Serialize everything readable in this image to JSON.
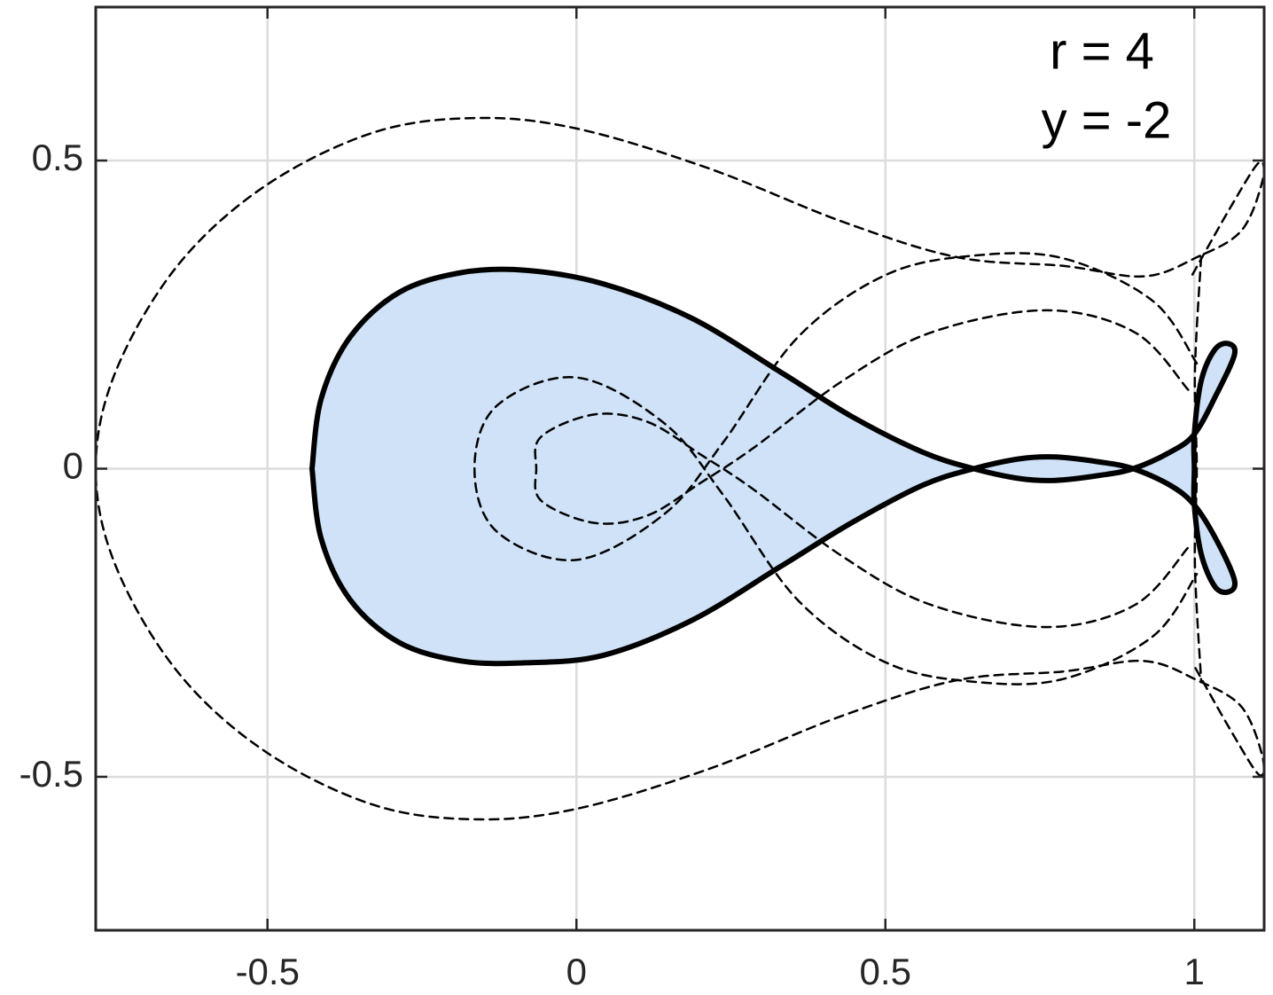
{
  "chart_data": {
    "type": "line",
    "annotations": [
      "r = 4",
      "y = -2"
    ],
    "xlim": [
      -0.778,
      1.113
    ],
    "ylim": [
      -0.749,
      0.749
    ],
    "xticks": [
      -0.5,
      0,
      0.5,
      1
    ],
    "yticks": [
      -0.5,
      0,
      0.5
    ],
    "grid": true,
    "series": [
      {
        "color": "#000000",
        "style": "solid",
        "fill": "#cfe2f7",
        "x": [
          -0.428,
          -0.413,
          -0.366,
          -0.287,
          -0.187,
          -0.083,
          0.043,
          0.187,
          0.33,
          0.445,
          0.56,
          0.643,
          0.717,
          0.775,
          0.846,
          0.901,
          0.961,
          1.0,
          1.036,
          1.065,
          1.055,
          1.033,
          1.011,
          1.0,
          1.0,
          1.0,
          1.011,
          1.033,
          1.055,
          1.065,
          1.036,
          1.0,
          0.961,
          0.901,
          0.846,
          0.775,
          0.717,
          0.643,
          0.56,
          0.445,
          0.33,
          0.187,
          0.043,
          -0.083,
          -0.187,
          -0.287,
          -0.366,
          -0.413,
          -0.428
        ],
        "y": [
          0,
          0.114,
          0.214,
          0.286,
          0.318,
          0.322,
          0.3,
          0.244,
          0.157,
          0.085,
          0.027,
          0,
          -0.016,
          -0.019,
          -0.011,
          0,
          0.027,
          0.056,
          0.121,
          0.185,
          0.203,
          0.193,
          0.142,
          0.056,
          0,
          -0.059,
          -0.138,
          -0.191,
          -0.2,
          -0.181,
          -0.116,
          -0.059,
          -0.027,
          0,
          0.011,
          0.019,
          0.016,
          0,
          -0.027,
          -0.088,
          -0.159,
          -0.246,
          -0.303,
          -0.315,
          -0.312,
          -0.282,
          -0.213,
          -0.114,
          0
        ]
      },
      {
        "color": "#000000",
        "style": "dashed",
        "x": [
          0.997,
          1.062,
          1.105,
          1.11,
          1.076,
          1.004,
          0.918,
          0.789,
          0.617,
          0.43,
          0.215,
          0,
          -0.165,
          -0.33,
          -0.505,
          -0.646,
          -0.746,
          -0.778,
          -0.746,
          -0.646,
          -0.505,
          -0.33,
          -0.165,
          0,
          0.215,
          0.43,
          0.617,
          0.789,
          0.918,
          1.004,
          1.076,
          1.11,
          1.105,
          1.062,
          0.997
        ],
        "y": [
          0.315,
          0.43,
          0.497,
          0.466,
          0.386,
          0.343,
          0.312,
          0.329,
          0.343,
          0.401,
          0.487,
          0.552,
          0.569,
          0.545,
          0.458,
          0.329,
          0.157,
          0,
          -0.157,
          -0.329,
          -0.458,
          -0.545,
          -0.569,
          -0.552,
          -0.487,
          -0.401,
          -0.343,
          -0.329,
          -0.312,
          -0.343,
          -0.386,
          -0.466,
          -0.497,
          -0.43,
          -0.315
        ]
      },
      {
        "color": "#000000",
        "style": "dashed",
        "x": [
          1.004,
          0.933,
          0.789,
          0.646,
          0.502,
          0.359,
          0.237,
          0.143,
          0,
          -0.129,
          -0.165,
          -0.129,
          0,
          0.143,
          0.237,
          0.359,
          0.502,
          0.646,
          0.789,
          0.933,
          1.004
        ],
        "y": [
          0.171,
          0.272,
          0.341,
          0.346,
          0.315,
          0.214,
          0.042,
          -0.073,
          -0.148,
          -0.102,
          0,
          0.102,
          0.148,
          0.073,
          -0.042,
          -0.214,
          -0.315,
          -0.346,
          -0.341,
          -0.272,
          -0.171
        ]
      },
      {
        "color": "#000000",
        "style": "dashed",
        "x": [
          0.99,
          0.904,
          0.76,
          0.574,
          0.43,
          0.287,
          0.201,
          0.115,
          0.029,
          -0.057,
          -0.065,
          -0.057,
          0.029,
          0.115,
          0.201,
          0.287,
          0.43,
          0.574,
          0.76,
          0.904,
          0.99
        ],
        "y": [
          0.128,
          0.221,
          0.257,
          0.221,
          0.142,
          0.034,
          -0.023,
          -0.076,
          -0.088,
          -0.052,
          0,
          0.052,
          0.088,
          0.076,
          0.023,
          -0.034,
          -0.142,
          -0.221,
          -0.257,
          -0.221,
          -0.128
        ]
      },
      {
        "color": "#000000",
        "style": "dashed",
        "x": [
          1.011,
          1.001,
          1.004,
          1.001,
          1.011
        ],
        "y": [
          0.343,
          0.157,
          0,
          -0.157,
          -0.343
        ]
      }
    ]
  }
}
